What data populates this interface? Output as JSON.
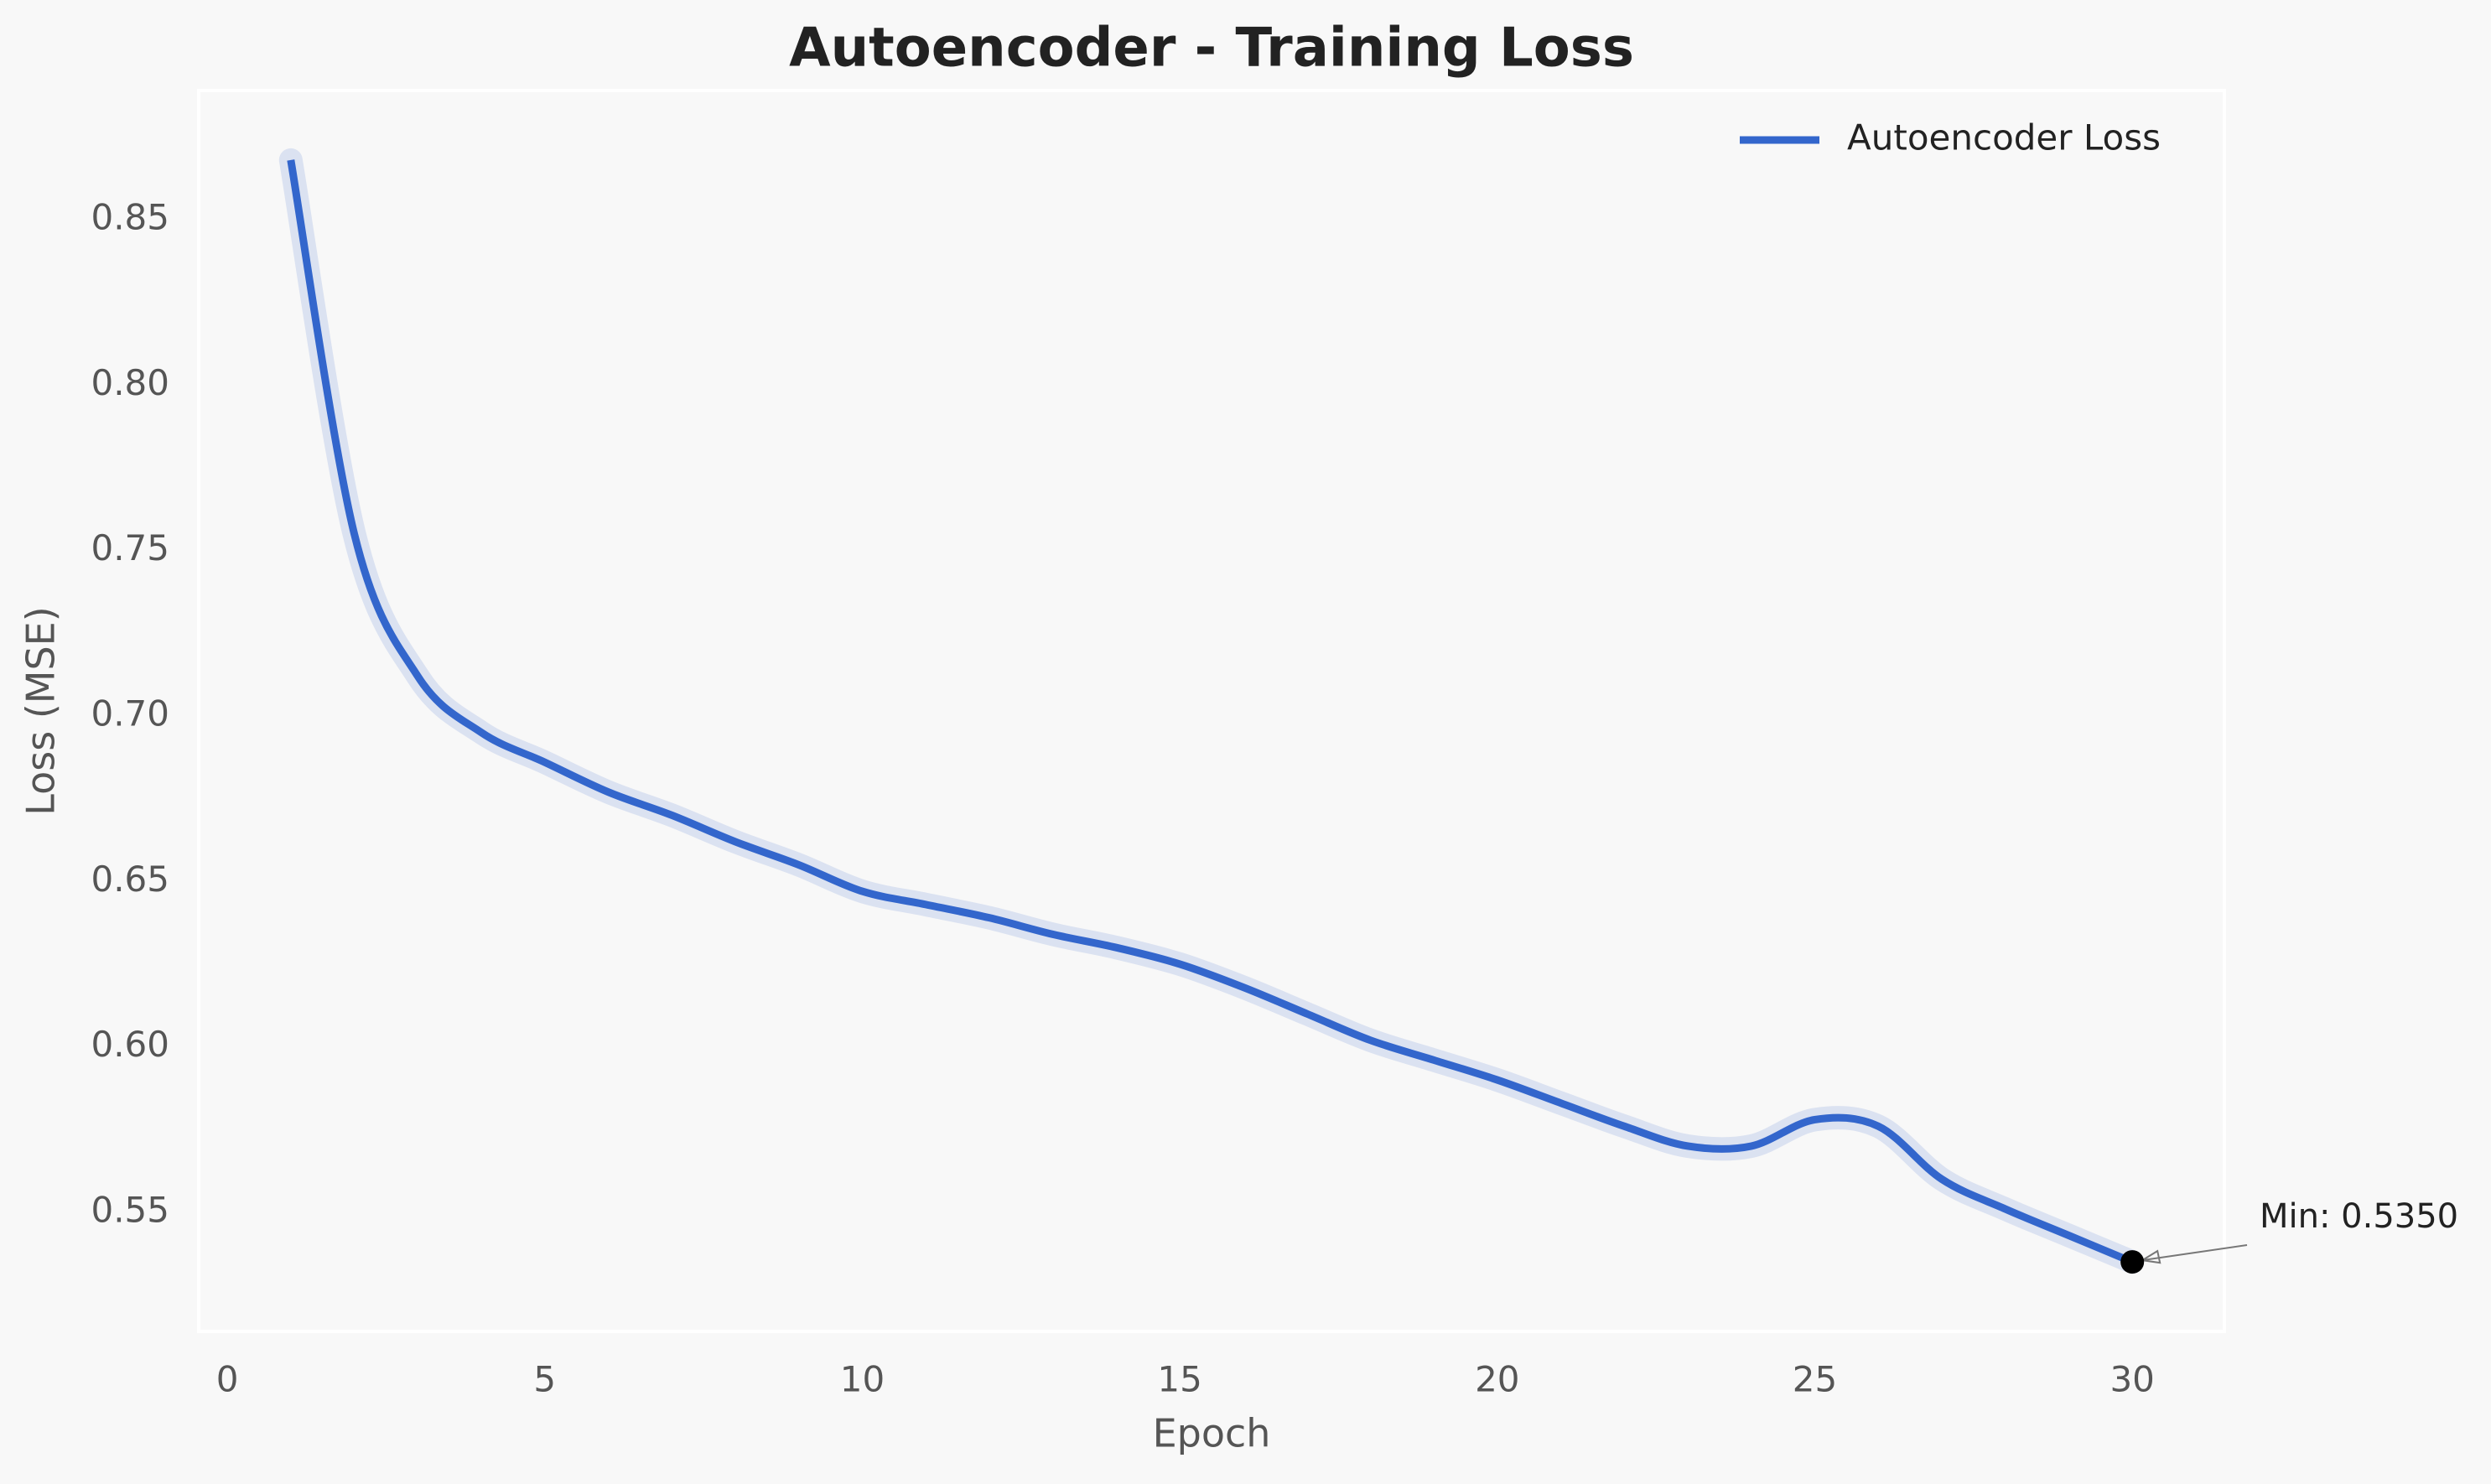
{
  "chart_data": {
    "type": "line",
    "title": "Autoencoder - Training Loss",
    "xlabel": "Epoch",
    "ylabel": "Loss (MSE)",
    "x": [
      1,
      2,
      3,
      4,
      5,
      6,
      7,
      8,
      9,
      10,
      11,
      12,
      13,
      14,
      15,
      16,
      17,
      18,
      19,
      20,
      21,
      22,
      23,
      24,
      25,
      26,
      27,
      28,
      29,
      30
    ],
    "series": [
      {
        "name": "Autoencoder Loss",
        "color": "#3366cc",
        "values": [
          0.868,
          0.755,
          0.712,
          0.695,
          0.686,
          0.677,
          0.67,
          0.662,
          0.655,
          0.647,
          0.643,
          0.639,
          0.634,
          0.63,
          0.625,
          0.618,
          0.61,
          0.602,
          0.596,
          0.59,
          0.583,
          0.576,
          0.57,
          0.57,
          0.578,
          0.576,
          0.56,
          0.551,
          0.543,
          0.535
        ]
      }
    ],
    "annotation": "Min: 0.5350",
    "xlim": [
      -0.45,
      31.45
    ],
    "ylim": [
      0.514,
      0.889
    ],
    "xticks": [
      0,
      5,
      10,
      15,
      20,
      25,
      30
    ],
    "yticks": [
      0.55,
      {
        "value": 0.6,
        "label": "0.60"
      },
      0.65,
      {
        "value": 0.7,
        "label": "0.70"
      },
      0.75,
      {
        "value": 0.8,
        "label": "0.80"
      },
      0.85
    ],
    "grid": false,
    "legend": "upper right"
  }
}
